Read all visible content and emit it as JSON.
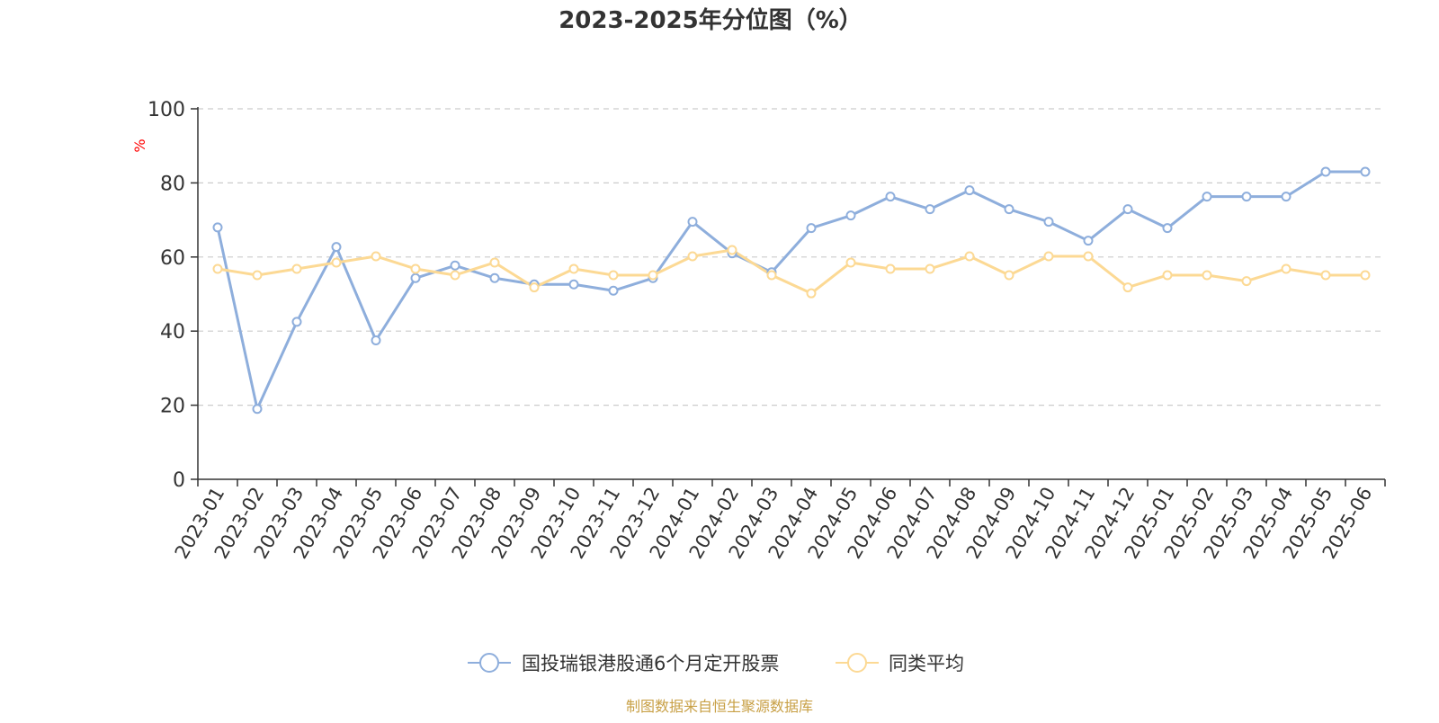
{
  "colors": {
    "series_1": "#8eaedc",
    "series_2": "#fcd994",
    "grid": "#cccccc",
    "axis": "#333333",
    "text": "#333333",
    "ylabel": "#ff0000",
    "source": "#c8a046"
  },
  "source_note": "制图数据来自恒生聚源数据库",
  "chart_data": {
    "type": "line",
    "title": "2023-2025年分位图（%）",
    "xlabel": "",
    "ylabel": "%",
    "ylim": [
      0,
      100
    ],
    "yticks": [
      0,
      20,
      40,
      60,
      80,
      100
    ],
    "grid": true,
    "legend_position": "bottom-center",
    "categories": [
      "2023-01",
      "2023-02",
      "2023-03",
      "2023-04",
      "2023-05",
      "2023-06",
      "2023-07",
      "2023-08",
      "2023-09",
      "2023-10",
      "2023-11",
      "2023-12",
      "2024-01",
      "2024-02",
      "2024-03",
      "2024-04",
      "2024-05",
      "2024-06",
      "2024-07",
      "2024-08",
      "2024-09",
      "2024-10",
      "2024-11",
      "2024-12",
      "2025-01",
      "2025-02",
      "2025-03",
      "2025-04",
      "2025-05",
      "2025-06"
    ],
    "series": [
      {
        "name": "国投瑞银港股通6个月定开股票",
        "color": "#8eaedc",
        "values": [
          68,
          19,
          42.5,
          62.7,
          37.5,
          54.3,
          57.7,
          54.3,
          52.6,
          52.6,
          50.9,
          54.3,
          69.5,
          61,
          55.9,
          67.8,
          71.2,
          76.3,
          72.9,
          78,
          72.9,
          69.5,
          64.4,
          72.9,
          67.8,
          76.3,
          76.3,
          76.3,
          83,
          83
        ]
      },
      {
        "name": "同类平均",
        "color": "#fcd994",
        "values": [
          56.8,
          55.1,
          56.8,
          58.5,
          60.2,
          56.8,
          55.1,
          58.5,
          51.8,
          56.8,
          55.1,
          55.1,
          60.2,
          61.9,
          55.1,
          50.2,
          58.5,
          56.8,
          56.8,
          60.2,
          55.1,
          60.2,
          60.2,
          51.8,
          55.1,
          55.1,
          53.5,
          56.8,
          55.1,
          55.1
        ]
      }
    ]
  }
}
